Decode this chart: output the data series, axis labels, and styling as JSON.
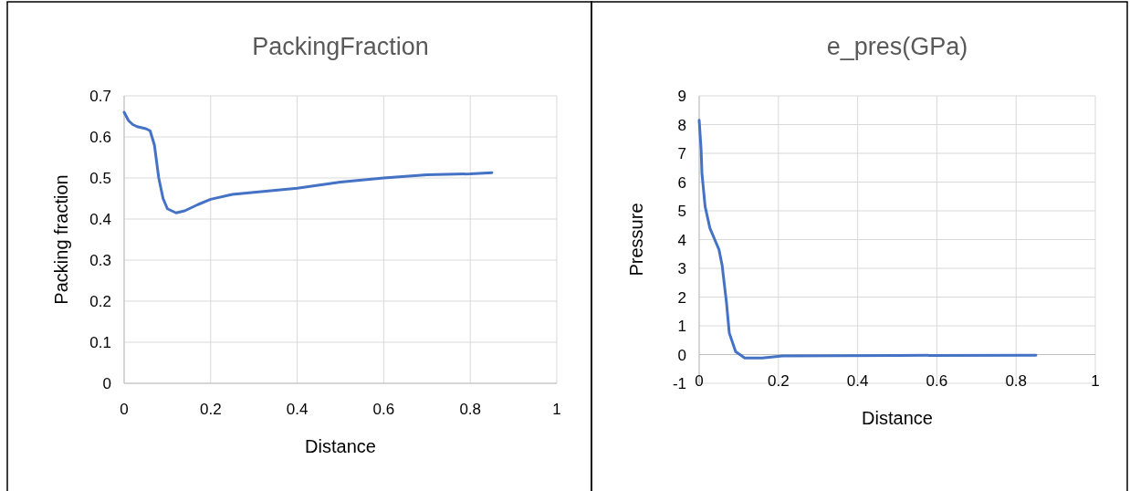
{
  "chart_data": [
    {
      "type": "line",
      "title": "PackingFraction",
      "xlabel": "Distance",
      "ylabel": "Packing fraction",
      "xlim": [
        0,
        1
      ],
      "xticks": [
        0,
        0.2,
        0.4,
        0.6,
        0.8,
        1
      ],
      "ylim": [
        0,
        0.7
      ],
      "yticks": [
        0,
        0.1,
        0.2,
        0.3,
        0.4,
        0.5,
        0.6,
        0.7
      ],
      "grid": true,
      "series": [
        {
          "color": "#4472c4",
          "x": [
            0,
            0.01,
            0.02,
            0.03,
            0.05,
            0.06,
            0.07,
            0.08,
            0.09,
            0.1,
            0.12,
            0.14,
            0.17,
            0.2,
            0.25,
            0.3,
            0.4,
            0.5,
            0.6,
            0.7,
            0.8,
            0.85
          ],
          "values": [
            0.66,
            0.64,
            0.63,
            0.625,
            0.62,
            0.615,
            0.58,
            0.5,
            0.45,
            0.425,
            0.415,
            0.42,
            0.435,
            0.448,
            0.46,
            0.465,
            0.475,
            0.49,
            0.5,
            0.508,
            0.51,
            0.513
          ]
        }
      ]
    },
    {
      "type": "line",
      "title": "e_pres(GPa)",
      "xlabel": "Distance",
      "ylabel": "Pressure",
      "xlim": [
        0,
        1
      ],
      "xticks": [
        0,
        0.2,
        0.4,
        0.6,
        0.8,
        1
      ],
      "ylim": [
        -1,
        9
      ],
      "yticks": [
        -1,
        0,
        1,
        2,
        3,
        4,
        5,
        6,
        7,
        8,
        9
      ],
      "grid": true,
      "series": [
        {
          "color": "#4472c4",
          "x": [
            0,
            0.005,
            0.007,
            0.015,
            0.027,
            0.05,
            0.058,
            0.069,
            0.076,
            0.092,
            0.115,
            0.16,
            0.21,
            0.5,
            0.85
          ],
          "values": [
            8.15,
            7.1,
            6.3,
            5.15,
            4.4,
            3.65,
            3.1,
            1.8,
            0.75,
            0.1,
            -0.12,
            -0.12,
            -0.05,
            -0.03,
            -0.02
          ]
        }
      ]
    }
  ]
}
